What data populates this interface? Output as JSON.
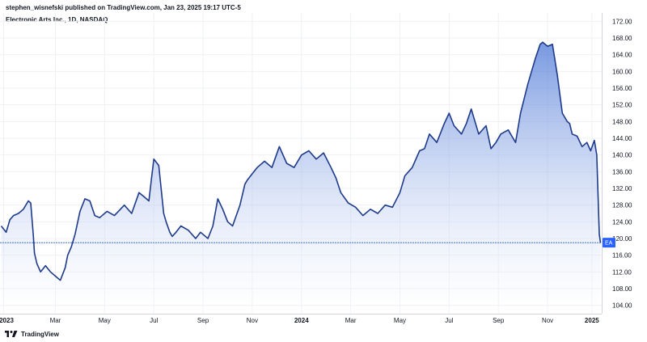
{
  "header": {
    "published": "stephen_wisnefski published on TradingView.com, Jan 23, 2025 19:17 UTC-5",
    "symbol": "Electronic Arts Inc., 1D, NASDAQ"
  },
  "brand": {
    "name": "TradingView",
    "logo_icon": "tradingview-logo-icon"
  },
  "colors": {
    "line": "#1e3a8a",
    "fill_top": "#4a76d6",
    "fill_bottom": "#ffffff",
    "price_line": "#4f7be0",
    "badge": "#2962ff",
    "grid": "#eef0f4"
  },
  "chart_data": {
    "type": "area",
    "title": "Electronic Arts Inc., 1D, NASDAQ",
    "ylabel": "",
    "ylim": [
      102,
      174
    ],
    "grid": true,
    "x_tick_labels": [
      {
        "label": "2023",
        "month": 12,
        "bold": true
      },
      {
        "label": "Mar",
        "month": 14.1
      },
      {
        "label": "May",
        "month": 16.1
      },
      {
        "label": "Jul",
        "month": 18.1
      },
      {
        "label": "Sep",
        "month": 20.1
      },
      {
        "label": "Nov",
        "month": 22.1
      },
      {
        "label": "2024",
        "month": 24.1,
        "bold": true
      },
      {
        "label": "Mar",
        "month": 26.1
      },
      {
        "label": "May",
        "month": 28.1
      },
      {
        "label": "Jul",
        "month": 30.1
      },
      {
        "label": "Sep",
        "month": 32.1
      },
      {
        "label": "Nov",
        "month": 34.1
      },
      {
        "label": "2025",
        "month": 35.9,
        "bold": true
      }
    ],
    "y_ticks": [
      104,
      108,
      112,
      116,
      120,
      124,
      128,
      132,
      136,
      140,
      144,
      148,
      152,
      156,
      160,
      164,
      168,
      172
    ],
    "y_tick_labels": [
      "104.00",
      "108.00",
      "112.00",
      "116.00",
      "120.00",
      "124.00",
      "128.00",
      "132.00",
      "136.00",
      "140.00",
      "144.00",
      "148.00",
      "152.00",
      "156.00",
      "160.00",
      "164.00",
      "168.00",
      "172.00"
    ],
    "last_price": 119,
    "last_label": "EA",
    "series": [
      {
        "x": [
          11.9,
          12.1,
          12.25,
          12.4,
          12.6,
          12.8,
          13.0,
          13.1,
          13.2,
          13.25,
          13.35,
          13.5,
          13.7,
          13.9,
          14.1,
          14.3,
          14.5,
          14.6,
          14.75,
          14.9,
          15.1,
          15.3,
          15.5,
          15.7,
          15.9,
          16.2,
          16.5,
          16.9,
          17.2,
          17.5,
          17.7,
          17.9,
          18.0,
          18.1,
          18.3,
          18.5,
          18.6,
          18.75,
          18.85,
          19.0,
          19.2,
          19.5,
          19.8,
          20.0,
          20.3,
          20.5,
          20.7,
          20.9,
          21.1,
          21.3,
          21.6,
          21.8,
          21.9,
          22.1,
          22.3,
          22.6,
          22.9,
          23.2,
          23.5,
          23.8,
          24.1,
          24.4,
          24.7,
          25.0,
          25.3,
          25.5,
          25.7,
          26.0,
          26.3,
          26.6,
          26.9,
          27.2,
          27.5,
          27.8,
          28.1,
          28.3,
          28.6,
          28.9,
          29.1,
          29.3,
          29.6,
          29.9,
          30.1,
          30.3,
          30.6,
          30.8,
          31.0,
          31.3,
          31.6,
          31.8,
          32.0,
          32.2,
          32.5,
          32.8,
          33.0,
          33.3,
          33.6,
          33.8,
          33.9,
          34.1,
          34.3,
          34.5,
          34.7,
          34.9,
          35.0,
          35.1,
          35.3,
          35.5,
          35.7,
          35.85,
          36.0,
          36.1,
          36.2,
          36.25
        ],
        "values": [
          123,
          121.5,
          124.5,
          125.5,
          126,
          127,
          129,
          128.5,
          121,
          116.5,
          114,
          112,
          113.5,
          112,
          111,
          110,
          113,
          116,
          118,
          121,
          126.5,
          129.5,
          129,
          125.5,
          125,
          126.5,
          125.5,
          128,
          126,
          131,
          130,
          129,
          134,
          139,
          137.5,
          126,
          124,
          121.5,
          120.5,
          121.5,
          123,
          122,
          120,
          121.5,
          120,
          123,
          129.5,
          127,
          124,
          123,
          128,
          133,
          134,
          135.5,
          137,
          138.5,
          137,
          142,
          138,
          137,
          140,
          141,
          139,
          140.5,
          137,
          134.5,
          131,
          128.5,
          127.5,
          125.5,
          127,
          126,
          128,
          127.5,
          131,
          135,
          137,
          141,
          141.5,
          145,
          143,
          147.5,
          150,
          147,
          145,
          147.5,
          151,
          145,
          147,
          141.5,
          143,
          145,
          146,
          143,
          150,
          157,
          163,
          166.5,
          167,
          166,
          166.5,
          159,
          150,
          148,
          147.5,
          145,
          144.5,
          142,
          143,
          141,
          143.5,
          140,
          121,
          119
        ]
      }
    ]
  }
}
